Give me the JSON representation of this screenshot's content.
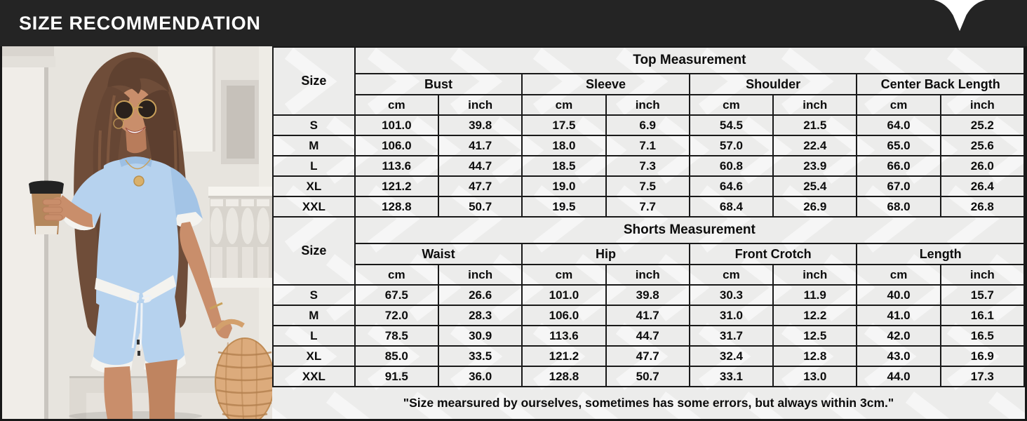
{
  "header": {
    "title": "SIZE RECOMMENDATION"
  },
  "logo_icon": "v-brand-logo",
  "colors": {
    "header_bg": "#242424",
    "panel_bg": "#ececeb",
    "chevron": "#ffffff",
    "grid": "#191919",
    "outfit_blue": "#b6d2ee"
  },
  "tables": [
    {
      "title": "Top Measurement",
      "size_label": "Size",
      "unit_labels": [
        "cm",
        "inch"
      ],
      "groups": [
        "Bust",
        "Sleeve",
        "Shoulder",
        "Center Back Length"
      ],
      "rows": [
        {
          "size": "S",
          "values": [
            "101.0",
            "39.8",
            "17.5",
            "6.9",
            "54.5",
            "21.5",
            "64.0",
            "25.2"
          ]
        },
        {
          "size": "M",
          "values": [
            "106.0",
            "41.7",
            "18.0",
            "7.1",
            "57.0",
            "22.4",
            "65.0",
            "25.6"
          ]
        },
        {
          "size": "L",
          "values": [
            "113.6",
            "44.7",
            "18.5",
            "7.3",
            "60.8",
            "23.9",
            "66.0",
            "26.0"
          ]
        },
        {
          "size": "XL",
          "values": [
            "121.2",
            "47.7",
            "19.0",
            "7.5",
            "64.6",
            "25.4",
            "67.0",
            "26.4"
          ]
        },
        {
          "size": "XXL",
          "values": [
            "128.8",
            "50.7",
            "19.5",
            "7.7",
            "68.4",
            "26.9",
            "68.0",
            "26.8"
          ]
        }
      ]
    },
    {
      "title": "Shorts Measurement",
      "size_label": "Size",
      "unit_labels": [
        "cm",
        "inch"
      ],
      "groups": [
        "Waist",
        "Hip",
        "Front Crotch",
        "Length"
      ],
      "rows": [
        {
          "size": "S",
          "values": [
            "67.5",
            "26.6",
            "101.0",
            "39.8",
            "30.3",
            "11.9",
            "40.0",
            "15.7"
          ]
        },
        {
          "size": "M",
          "values": [
            "72.0",
            "28.3",
            "106.0",
            "41.7",
            "31.0",
            "12.2",
            "41.0",
            "16.1"
          ]
        },
        {
          "size": "L",
          "values": [
            "78.5",
            "30.9",
            "113.6",
            "44.7",
            "31.7",
            "12.5",
            "42.0",
            "16.5"
          ]
        },
        {
          "size": "XL",
          "values": [
            "85.0",
            "33.5",
            "121.2",
            "47.7",
            "32.4",
            "12.8",
            "43.0",
            "16.9"
          ]
        },
        {
          "size": "XXL",
          "values": [
            "91.5",
            "36.0",
            "128.8",
            "50.7",
            "33.1",
            "13.0",
            "44.0",
            "17.3"
          ]
        }
      ]
    }
  ],
  "footnote": "\"Size mearsured by ourselves, sometimes has some errors, but always within 3cm.\""
}
